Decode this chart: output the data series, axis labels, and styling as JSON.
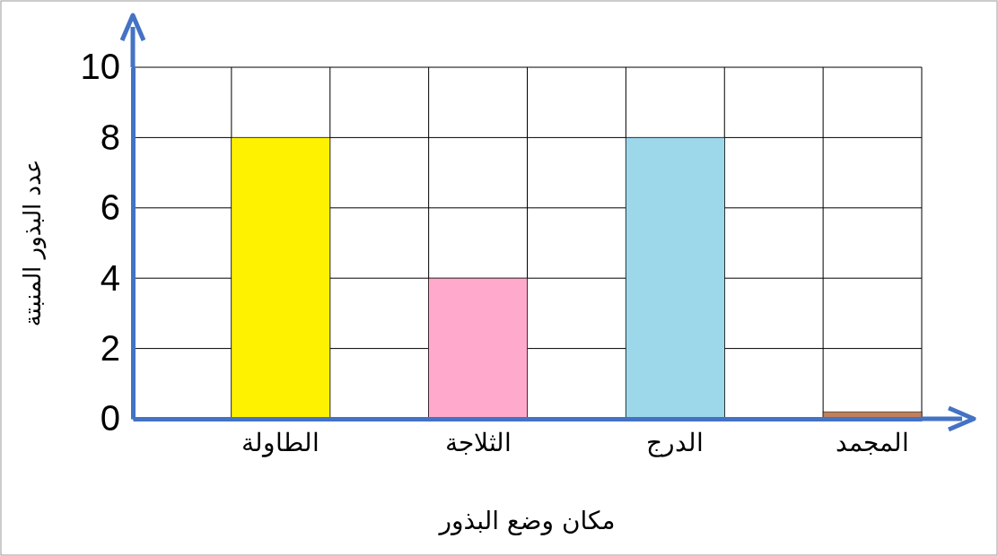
{
  "chart_data": {
    "type": "bar",
    "xlabel": "مكان وضع البذور",
    "ylabel": "عدد البذور المنبتة",
    "categories": [
      null,
      "الطاولة",
      null,
      "الثلاجة",
      null,
      "الدرج",
      null,
      "المجمد"
    ],
    "values": [
      null,
      8,
      null,
      4,
      null,
      8,
      null,
      0.2
    ],
    "colors": [
      null,
      "#fff200",
      null,
      "#ffaacc",
      null,
      "#9dd8ea",
      null,
      "#c0805a"
    ],
    "ylim": [
      0,
      10
    ],
    "yticks": [
      0,
      2,
      4,
      6,
      8,
      10
    ],
    "grid": true
  }
}
